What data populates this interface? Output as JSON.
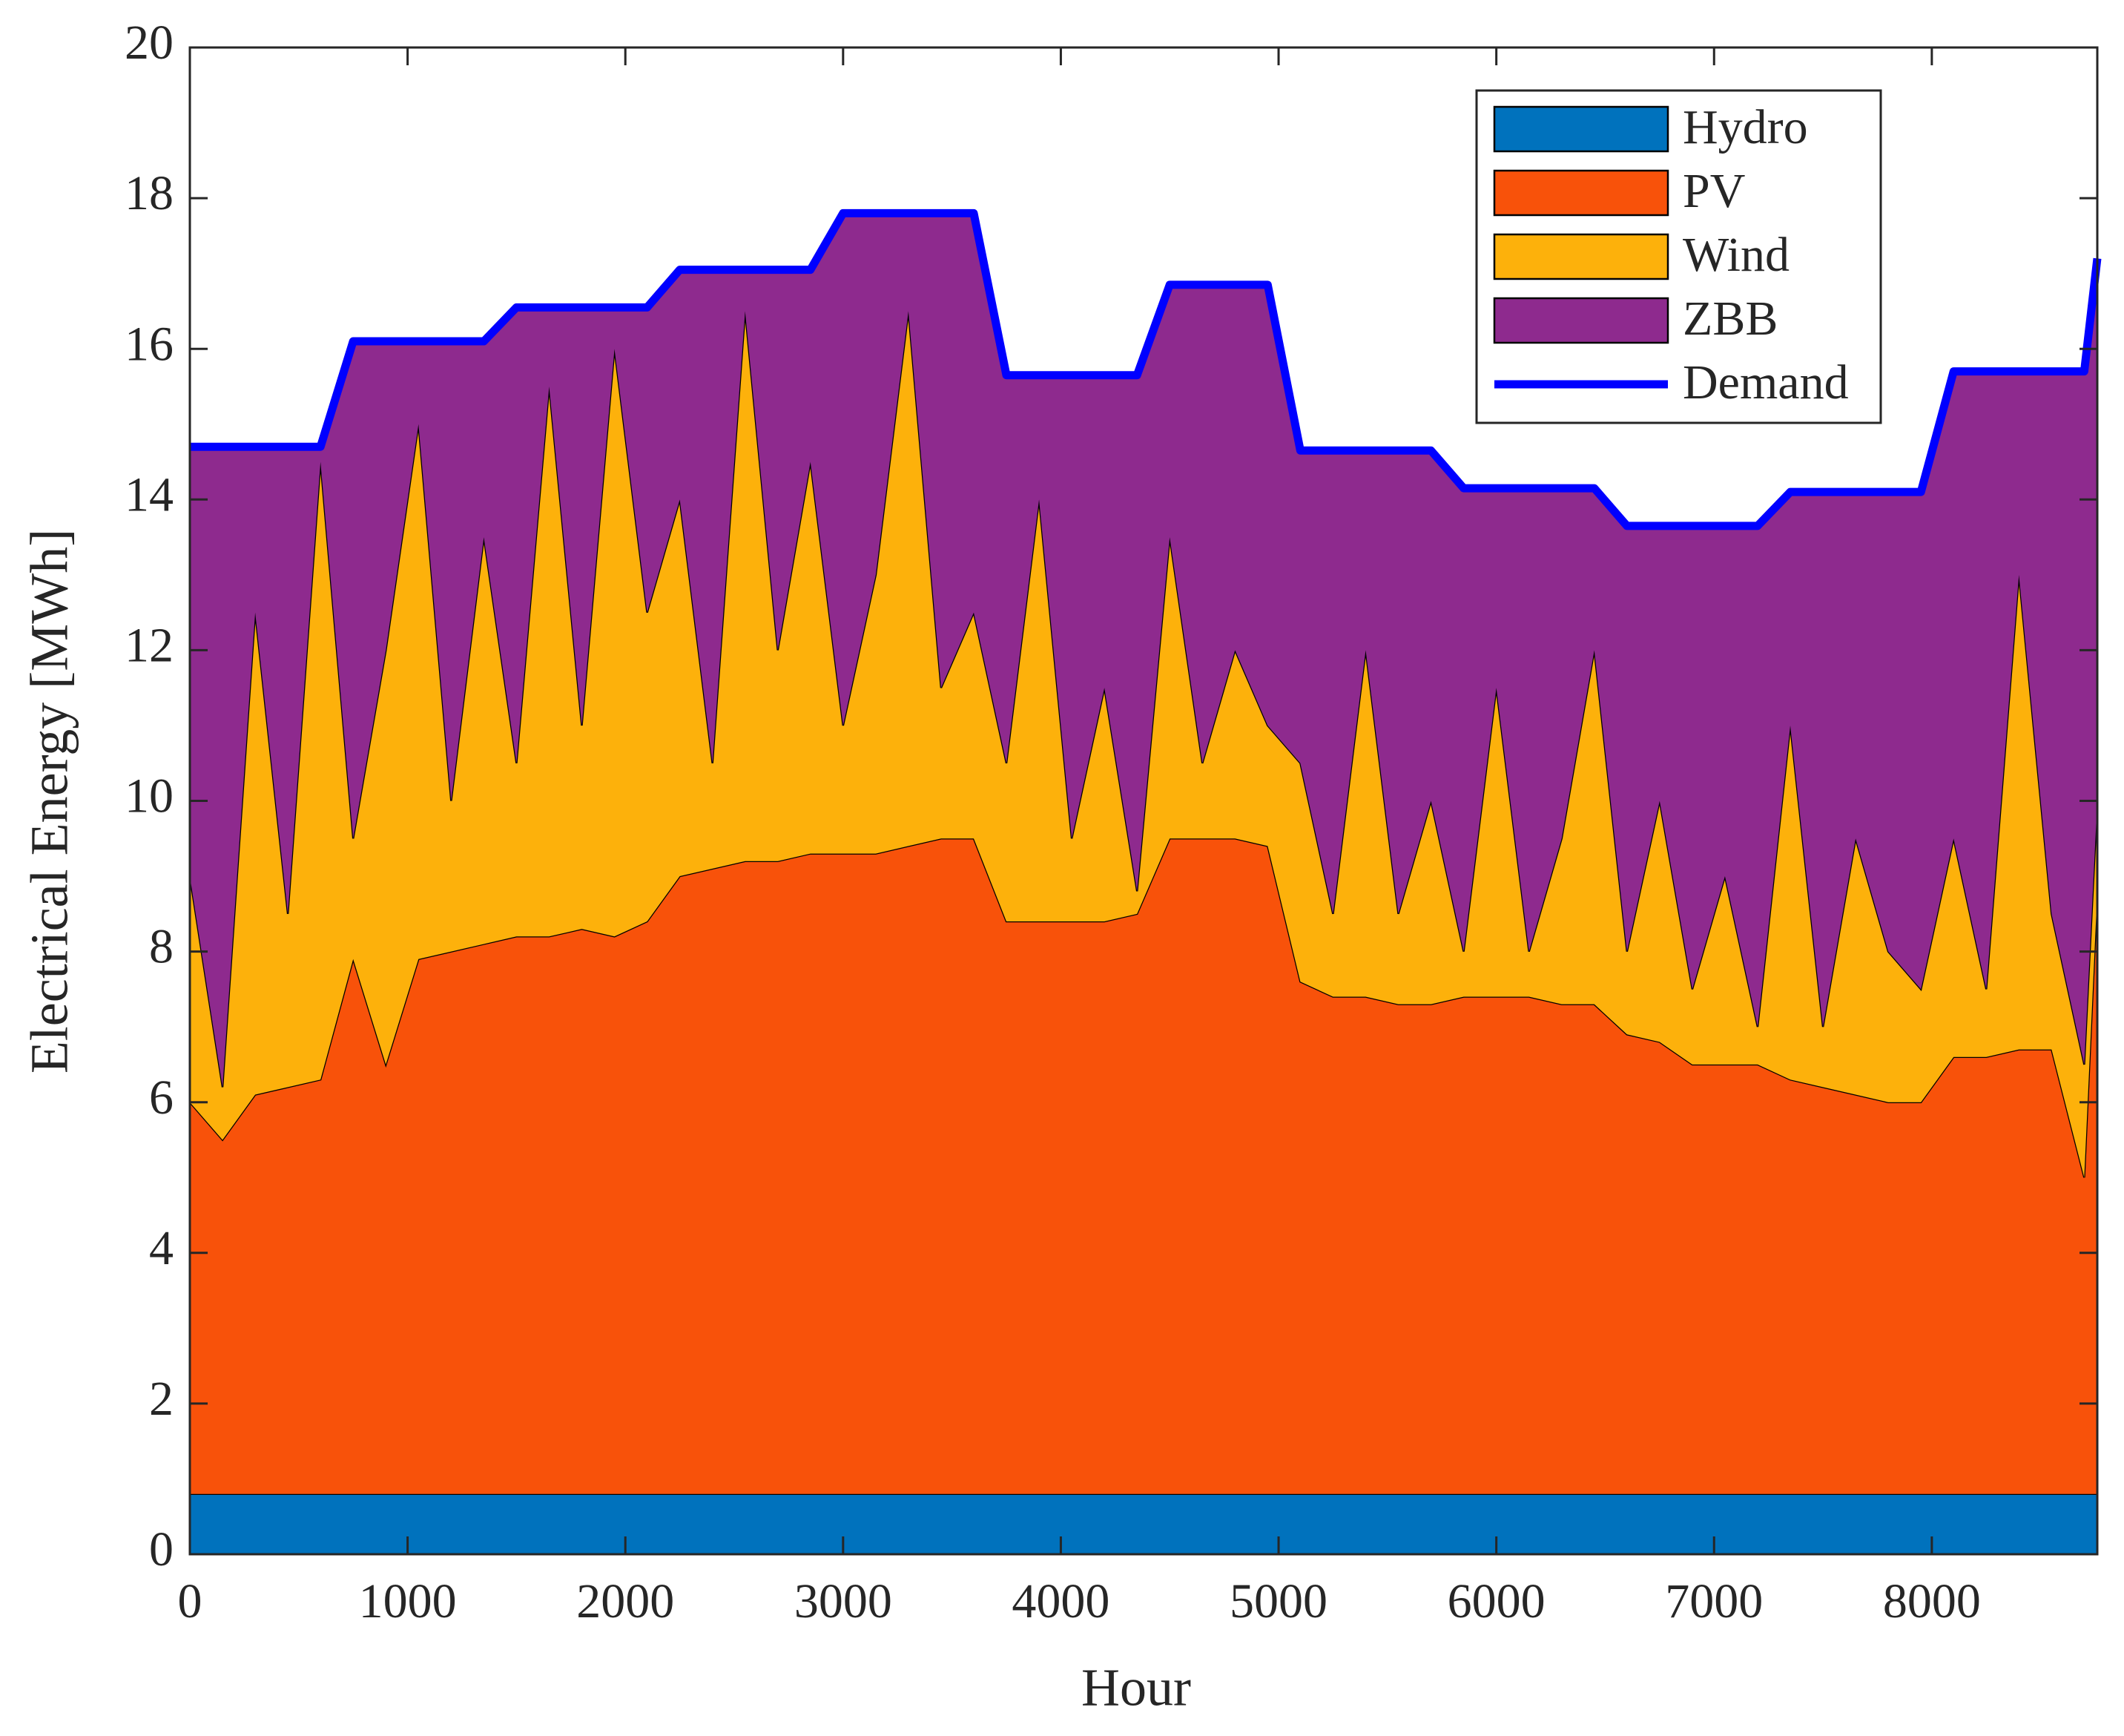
{
  "chart_data": {
    "type": "stacked_area",
    "x_label": "Hour",
    "y_label": "Electrical Energy [MWh]",
    "xlim": [
      0,
      8760
    ],
    "ylim": [
      0,
      20
    ],
    "xticks": [
      0,
      1000,
      2000,
      3000,
      4000,
      5000,
      6000,
      7000,
      8000
    ],
    "yticks": [
      0,
      2,
      4,
      6,
      8,
      10,
      12,
      14,
      16,
      18,
      20
    ],
    "grid": false,
    "legend": "upper right",
    "x": [
      0,
      150,
      300,
      450,
      600,
      750,
      900,
      1050,
      1200,
      1350,
      1500,
      1650,
      1800,
      1950,
      2100,
      2250,
      2400,
      2550,
      2700,
      2850,
      3000,
      3150,
      3300,
      3450,
      3600,
      3750,
      3900,
      4050,
      4200,
      4350,
      4500,
      4650,
      4800,
      4950,
      5100,
      5250,
      5400,
      5550,
      5700,
      5850,
      6000,
      6150,
      6300,
      6450,
      6600,
      6750,
      6900,
      7050,
      7200,
      7350,
      7500,
      7650,
      7800,
      7950,
      8100,
      8250,
      8400,
      8550,
      8700,
      8760
    ],
    "series": [
      {
        "name": "Hydro",
        "color": "#0072BD",
        "values": [
          0.8,
          0.8,
          0.8,
          0.8,
          0.8,
          0.8,
          0.8,
          0.8,
          0.8,
          0.8,
          0.8,
          0.8,
          0.8,
          0.8,
          0.8,
          0.8,
          0.8,
          0.8,
          0.8,
          0.8,
          0.8,
          0.8,
          0.8,
          0.8,
          0.8,
          0.8,
          0.8,
          0.8,
          0.8,
          0.8,
          0.8,
          0.8,
          0.8,
          0.8,
          0.8,
          0.8,
          0.8,
          0.8,
          0.8,
          0.8,
          0.8,
          0.8,
          0.8,
          0.8,
          0.8,
          0.8,
          0.8,
          0.8,
          0.8,
          0.8,
          0.8,
          0.8,
          0.8,
          0.8,
          0.8,
          0.8,
          0.8,
          0.8,
          0.8,
          0.8
        ]
      },
      {
        "name": "PV",
        "color": "#F8520A",
        "values": [
          5.2,
          4.7,
          5.3,
          5.4,
          5.5,
          7.1,
          5.7,
          7.1,
          7.2,
          7.3,
          7.4,
          7.4,
          7.5,
          7.4,
          7.6,
          8.2,
          8.3,
          8.4,
          8.4,
          8.5,
          8.5,
          8.5,
          8.6,
          8.7,
          8.7,
          7.6,
          7.6,
          7.6,
          7.6,
          7.7,
          8.7,
          8.7,
          8.7,
          8.6,
          6.8,
          6.6,
          6.6,
          6.5,
          6.5,
          6.6,
          6.6,
          6.6,
          6.5,
          6.5,
          6.1,
          6.0,
          5.7,
          5.7,
          5.7,
          5.5,
          5.4,
          5.3,
          5.2,
          5.2,
          5.8,
          5.8,
          5.9,
          5.9,
          4.2,
          8.0
        ]
      },
      {
        "name": "Wind",
        "color": "#FDB10B",
        "values": [
          3.0,
          0.7,
          6.4,
          2.3,
          8.2,
          1.6,
          5.5,
          7.1,
          2.0,
          5.4,
          2.3,
          7.3,
          2.7,
          7.8,
          4.1,
          5.0,
          1.4,
          7.3,
          2.8,
          5.2,
          1.7,
          3.7,
          7.1,
          2.0,
          3.0,
          2.1,
          5.6,
          1.1,
          3.1,
          0.3,
          4.0,
          1.0,
          2.5,
          1.6,
          2.9,
          1.1,
          4.6,
          1.2,
          2.7,
          0.6,
          4.1,
          0.6,
          2.2,
          4.7,
          1.1,
          3.2,
          1.0,
          2.5,
          0.5,
          4.7,
          0.8,
          3.4,
          2.0,
          1.5,
          2.9,
          0.9,
          6.3,
          1.8,
          1.5,
          1.2
        ]
      },
      {
        "name": "ZBB",
        "color": "#8E2A8E",
        "values": [
          5.7,
          8.5,
          2.2,
          6.2,
          0.2,
          6.6,
          4.1,
          1.1,
          6.1,
          2.6,
          6.05,
          1.05,
          5.55,
          0.55,
          4.05,
          3.05,
          6.55,
          0.55,
          5.05,
          2.55,
          6.8,
          4.8,
          1.3,
          6.3,
          5.3,
          5.15,
          1.65,
          6.15,
          4.15,
          6.85,
          3.35,
          6.35,
          4.85,
          5.85,
          4.15,
          6.15,
          2.65,
          6.15,
          4.65,
          6.15,
          2.65,
          6.15,
          4.65,
          2.15,
          5.65,
          3.65,
          6.15,
          4.65,
          6.65,
          3.1,
          7.1,
          4.6,
          6.1,
          6.6,
          6.2,
          8.2,
          2.7,
          7.2,
          9.2,
          7.2
        ]
      },
      {
        "name": "Demand",
        "color": "#0000FF",
        "kind": "line",
        "values": [
          14.7,
          14.7,
          14.7,
          14.7,
          14.7,
          16.1,
          16.1,
          16.1,
          16.1,
          16.1,
          16.55,
          16.55,
          16.55,
          16.55,
          16.55,
          17.05,
          17.05,
          17.05,
          17.05,
          17.05,
          17.8,
          17.8,
          17.8,
          17.8,
          17.8,
          15.65,
          15.65,
          15.65,
          15.65,
          15.65,
          16.85,
          16.85,
          16.85,
          16.85,
          14.65,
          14.65,
          14.65,
          14.65,
          14.65,
          14.15,
          14.15,
          14.15,
          14.15,
          14.15,
          13.65,
          13.65,
          13.65,
          13.65,
          13.65,
          14.1,
          14.1,
          14.1,
          14.1,
          14.1,
          15.7,
          15.7,
          15.7,
          15.7,
          15.7,
          17.2
        ]
      }
    ]
  }
}
